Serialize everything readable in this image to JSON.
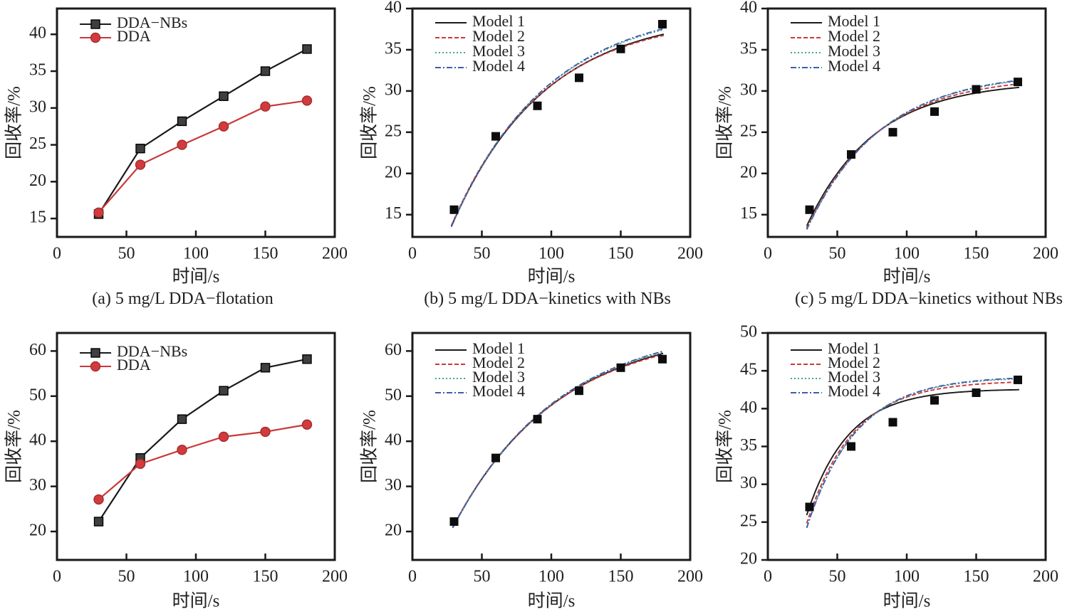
{
  "figure": {
    "xlabel": "时间/s",
    "ylabel": "回收率/%",
    "colors": {
      "frame": "#1a1a1a",
      "dda_nbs_line": "#1a1a1a",
      "dda_nbs_marker": "#3f3f3f",
      "dda_line": "#c8393b",
      "dda_marker": "#d23b3d",
      "model1": "#1a1a1a",
      "model2": "#cc3a3a",
      "model3": "#49a29a",
      "model4": "#3d5fa8",
      "kinetic_point": "#0d0d0d"
    }
  },
  "chart_data": [
    {
      "id": "a",
      "type": "line",
      "caption": "(a) 5 mg/L DDA−flotation",
      "xlabel": "时间/s",
      "ylabel": "回收率/%",
      "xlim": [
        0,
        200
      ],
      "xticks": [
        0,
        50,
        100,
        150,
        200
      ],
      "ylim": [
        12.5,
        43.5
      ],
      "yticks": [
        15,
        20,
        25,
        30,
        35,
        40
      ],
      "x": [
        30,
        60,
        90,
        120,
        150,
        180
      ],
      "series": [
        {
          "name": "DDA−NBs",
          "marker": "square",
          "line_color": "#1a1a1a",
          "marker_color": "#3f3f3f",
          "marker_edge": "#000000",
          "values": [
            15.6,
            24.5,
            28.2,
            31.6,
            35.0,
            38.0
          ]
        },
        {
          "name": "DDA",
          "marker": "circle",
          "line_color": "#c8393b",
          "marker_color": "#d23b3d",
          "marker_edge": "#a52a2c",
          "values": [
            15.8,
            22.3,
            25.0,
            27.5,
            30.2,
            31.0
          ]
        }
      ]
    },
    {
      "id": "b",
      "type": "scatter",
      "caption": "(b) 5 mg/L DDA−kinetics with NBs",
      "xlabel": "时间/s",
      "ylabel": "回收率/%",
      "xlim": [
        0,
        200
      ],
      "xticks": [
        0,
        50,
        100,
        150,
        200
      ],
      "ylim": [
        12.3,
        40
      ],
      "yticks": [
        15,
        20,
        25,
        30,
        35,
        40
      ],
      "points": {
        "x": [
          30,
          60,
          90,
          120,
          150,
          180
        ],
        "values": [
          15.6,
          24.5,
          28.2,
          31.6,
          35.1,
          38.1
        ]
      },
      "t_range": [
        28,
        181
      ],
      "models": [
        {
          "name": "Model 1",
          "color": "#1a1a1a",
          "dash": "",
          "rmax": 39.5,
          "k": 0.015
        },
        {
          "name": "Model 2",
          "color": "#cc3a3a",
          "dash": "6 3",
          "rmax": 39.2,
          "k": 0.0153
        },
        {
          "name": "Model 3",
          "color": "#49a29a",
          "dash": "2 3",
          "rmax": 40.3,
          "k": 0.0146
        },
        {
          "name": "Model 4",
          "color": "#3d5fa8",
          "dash": "8 3 2 3",
          "rmax": 40.5,
          "k": 0.0145
        }
      ]
    },
    {
      "id": "c",
      "type": "scatter",
      "caption": "(c) 5 mg/L DDA−kinetics without NBs",
      "xlabel": "时间/s",
      "ylabel": "回收率/%",
      "xlim": [
        0,
        200
      ],
      "xticks": [
        0,
        50,
        100,
        150,
        200
      ],
      "ylim": [
        12.3,
        40
      ],
      "yticks": [
        15,
        20,
        25,
        30,
        35,
        40
      ],
      "points": {
        "x": [
          30,
          60,
          90,
          120,
          150,
          180
        ],
        "values": [
          15.6,
          22.3,
          25.0,
          27.5,
          30.2,
          31.1
        ]
      },
      "t_range": [
        28,
        181
      ],
      "models": [
        {
          "name": "Model 1",
          "color": "#1a1a1a",
          "dash": "",
          "rmax": 31.2,
          "k": 0.0205
        },
        {
          "name": "Model 2",
          "color": "#cc3a3a",
          "dash": "6 3",
          "rmax": 31.8,
          "k": 0.0195
        },
        {
          "name": "Model 3",
          "color": "#49a29a",
          "dash": "2 3",
          "rmax": 32.3,
          "k": 0.0188
        },
        {
          "name": "Model 4",
          "color": "#3d5fa8",
          "dash": "8 3 2 3",
          "rmax": 32.4,
          "k": 0.0187
        }
      ]
    },
    {
      "id": "d",
      "type": "line",
      "caption": "",
      "xlabel": "时间/s",
      "ylabel": "回收率/%",
      "xlim": [
        0,
        200
      ],
      "xticks": [
        0,
        50,
        100,
        150,
        200
      ],
      "ylim": [
        13.7,
        64
      ],
      "yticks": [
        20,
        30,
        40,
        50,
        60
      ],
      "x": [
        30,
        60,
        90,
        120,
        150,
        180
      ],
      "series": [
        {
          "name": "DDA−NBs",
          "marker": "square",
          "line_color": "#1a1a1a",
          "marker_color": "#3f3f3f",
          "marker_edge": "#000000",
          "values": [
            22.2,
            36.3,
            44.9,
            51.2,
            56.3,
            58.2
          ]
        },
        {
          "name": "DDA",
          "marker": "circle",
          "line_color": "#c8393b",
          "marker_color": "#d23b3d",
          "marker_edge": "#a52a2c",
          "values": [
            27.1,
            35.0,
            38.1,
            41.0,
            42.1,
            43.7
          ]
        }
      ]
    },
    {
      "id": "e",
      "type": "scatter",
      "caption": "",
      "xlabel": "时间/s",
      "ylabel": "回收率/%",
      "xlim": [
        0,
        200
      ],
      "xticks": [
        0,
        50,
        100,
        150,
        200
      ],
      "ylim": [
        13.7,
        64
      ],
      "yticks": [
        20,
        30,
        40,
        50,
        60
      ],
      "points": {
        "x": [
          30,
          60,
          90,
          120,
          150,
          180
        ],
        "values": [
          22.2,
          36.3,
          44.9,
          51.2,
          56.3,
          58.2
        ]
      },
      "t_range": [
        29,
        181
      ],
      "models": [
        {
          "name": "Model 1",
          "color": "#1a1a1a",
          "dash": "",
          "rmax": 65.5,
          "k": 0.0132
        },
        {
          "name": "Model 2",
          "color": "#cc3a3a",
          "dash": "6 3",
          "rmax": 65.0,
          "k": 0.0134
        },
        {
          "name": "Model 3",
          "color": "#49a29a",
          "dash": "2 3",
          "rmax": 66.0,
          "k": 0.0131
        },
        {
          "name": "Model 4",
          "color": "#3d5fa8",
          "dash": "8 3 2 3",
          "rmax": 66.3,
          "k": 0.013
        }
      ]
    },
    {
      "id": "f",
      "type": "scatter",
      "caption": "",
      "xlabel": "时间/s",
      "ylabel": "回收率/%",
      "xlim": [
        0,
        200
      ],
      "xticks": [
        0,
        50,
        100,
        150,
        200
      ],
      "ylim": [
        20,
        50
      ],
      "yticks": [
        20,
        25,
        30,
        35,
        40,
        45,
        50
      ],
      "points": {
        "x": [
          30,
          60,
          90,
          120,
          150,
          180
        ],
        "values": [
          27.0,
          35.0,
          38.2,
          41.1,
          42.1,
          43.8
        ]
      },
      "t_range": [
        28,
        181
      ],
      "models": [
        {
          "name": "Model 1",
          "color": "#1a1a1a",
          "dash": "",
          "rmax": 42.6,
          "k": 0.0335
        },
        {
          "name": "Model 2",
          "color": "#cc3a3a",
          "dash": "6 3",
          "rmax": 43.7,
          "k": 0.03
        },
        {
          "name": "Model 3",
          "color": "#49a29a",
          "dash": "2 3",
          "rmax": 44.2,
          "k": 0.0285
        },
        {
          "name": "Model 4",
          "color": "#3d5fa8",
          "dash": "8 3 2 3",
          "rmax": 44.3,
          "k": 0.0283
        }
      ]
    }
  ]
}
